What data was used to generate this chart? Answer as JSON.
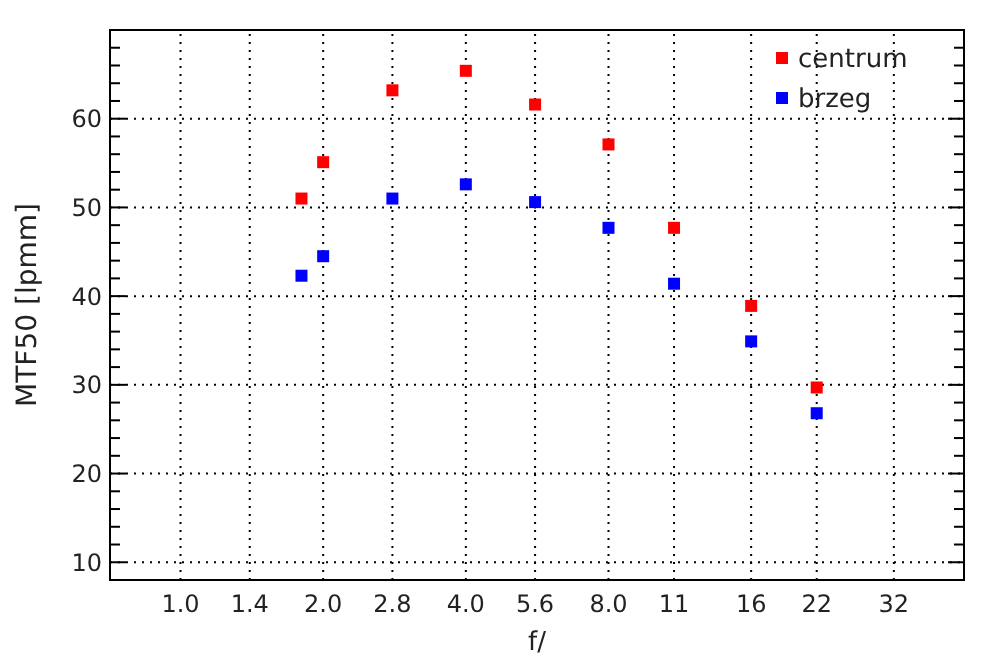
{
  "chart_data": {
    "type": "scatter",
    "xlabel": "f/",
    "ylabel": "MTF50 [lpmm]",
    "x": [
      1.8,
      2,
      2.8,
      4,
      5.6,
      8,
      11,
      16,
      22
    ],
    "series": [
      {
        "name": "centrum",
        "color": "#ff0000",
        "values": [
          51.0,
          55.1,
          63.2,
          65.4,
          61.6,
          57.1,
          47.7,
          38.9,
          29.7
        ]
      },
      {
        "name": "brzeg",
        "color": "#0000ff",
        "values": [
          42.3,
          44.5,
          51.0,
          52.6,
          50.6,
          47.7,
          41.4,
          34.9,
          26.8
        ]
      }
    ],
    "log": "x",
    "xlim": [
      0.71,
      45
    ],
    "ylim": [
      8,
      70
    ],
    "xticks": [
      {
        "value": 1,
        "label": "1.0"
      },
      {
        "value": 1.4,
        "label": "1.4"
      },
      {
        "value": 2,
        "label": "2.0"
      },
      {
        "value": 2.8,
        "label": "2.8"
      },
      {
        "value": 4,
        "label": "4.0"
      },
      {
        "value": 5.6,
        "label": "5.6"
      },
      {
        "value": 8,
        "label": "8.0"
      },
      11,
      16,
      22,
      32
    ],
    "yticks": [
      10,
      {
        "value": 12,
        "label": null
      },
      {
        "value": 14,
        "label": null
      },
      {
        "value": 16,
        "label": null
      },
      {
        "value": 18,
        "label": null
      },
      20,
      {
        "value": 22,
        "label": null
      },
      {
        "value": 24,
        "label": null
      },
      {
        "value": 26,
        "label": null
      },
      {
        "value": 28,
        "label": null
      },
      30,
      {
        "value": 32,
        "label": null
      },
      {
        "value": 34,
        "label": null
      },
      {
        "value": 36,
        "label": null
      },
      {
        "value": 38,
        "label": null
      },
      40,
      {
        "value": 42,
        "label": null
      },
      {
        "value": 44,
        "label": null
      },
      {
        "value": 46,
        "label": null
      },
      {
        "value": 48,
        "label": null
      },
      50,
      {
        "value": 52,
        "label": null
      },
      {
        "value": 54,
        "label": null
      },
      {
        "value": 56,
        "label": null
      },
      {
        "value": 58,
        "label": null
      },
      60,
      {
        "value": 62,
        "label": null
      },
      {
        "value": 64,
        "label": null
      },
      {
        "value": 66,
        "label": null
      },
      {
        "value": 68,
        "label": null
      }
    ],
    "grid": true,
    "legend": "top right",
    "marker": "square"
  }
}
